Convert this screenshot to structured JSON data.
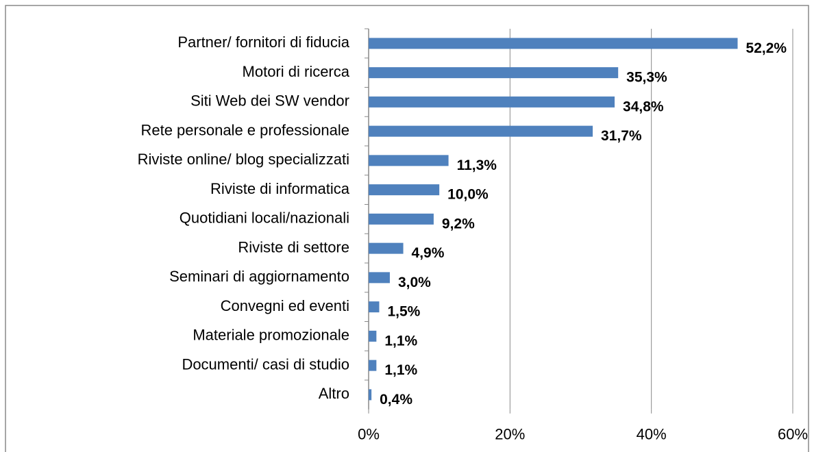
{
  "chart_data": {
    "type": "bar",
    "orientation": "horizontal",
    "categories": [
      "Partner/ fornitori di fiducia",
      "Motori di ricerca",
      "Siti Web dei SW vendor",
      "Rete personale e professionale",
      "Riviste online/ blog specializzati",
      "Riviste di informatica",
      "Quotidiani locali/nazionali",
      "Riviste di settore",
      "Seminari di aggiornamento",
      "Convegni ed eventi",
      "Materiale promozionale",
      "Documenti/ casi di studio",
      "Altro"
    ],
    "values": [
      52.2,
      35.3,
      34.8,
      31.7,
      11.3,
      10.0,
      9.2,
      4.9,
      3.0,
      1.5,
      1.1,
      1.1,
      0.4
    ],
    "value_labels": [
      "52,2%",
      "35,3%",
      "34,8%",
      "31,7%",
      "11,3%",
      "10,0%",
      "9,2%",
      "4,9%",
      "3,0%",
      "1,5%",
      "1,1%",
      "1,1%",
      "0,4%"
    ],
    "color": "#4f81bd",
    "xlim": [
      0,
      60
    ],
    "xticks": [
      {
        "value": 0,
        "label": "0%"
      },
      {
        "value": 20,
        "label": "20%"
      },
      {
        "value": 40,
        "label": "40%"
      },
      {
        "value": 60,
        "label": "60%"
      }
    ],
    "grid": true
  }
}
